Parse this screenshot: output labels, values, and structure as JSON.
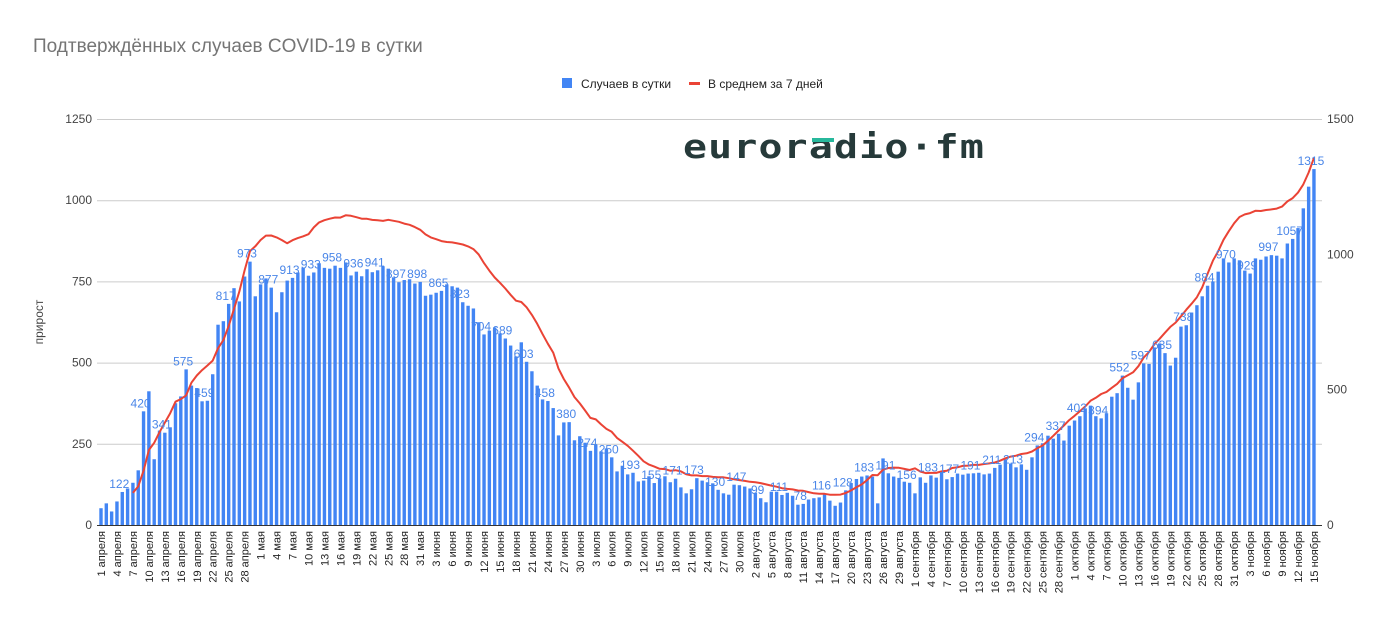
{
  "chart_data": {
    "type": "bar",
    "title": "Подтверждённых случаев COVID-19 в сутки",
    "ylabel": "прирост",
    "xlabel": "",
    "y_left": {
      "min": 0,
      "max": 1250,
      "ticks": [
        0,
        250,
        500,
        750,
        1000,
        1250
      ]
    },
    "y_right": {
      "min": 0,
      "max": 1500,
      "ticks": [
        0,
        500,
        1000,
        1500
      ]
    },
    "grid": true,
    "legend_position": "top",
    "colors": {
      "bars": "#4285f4",
      "line": "#ea4335",
      "grid": "#cccccc",
      "logo": "#263a3a",
      "logo_accent": "#27b89c"
    },
    "series": [
      {
        "name": "Случаев в сутки",
        "type": "bar",
        "axis": "right",
        "values": [
          62,
          80,
          50,
          87,
          122,
          135,
          156,
          202,
          420,
          494,
          243,
          349,
          341,
          361,
          450,
          475,
          575,
          515,
          506,
          457,
          459,
          557,
          740,
          753,
          817,
          875,
          826,
          918,
          973,
          845,
          889,
          911,
          877,
          786,
          860,
          903,
          913,
          933,
          951,
          921,
          933,
          967,
          950,
          947,
          958,
          950,
          970,
          922,
          936,
          919,
          945,
          934,
          941,
          956,
          947,
          915,
          897,
          905,
          908,
          892,
          898,
          847,
          851,
          858,
          865,
          889,
          882,
          877,
          823,
          810,
          800,
          749,
          704,
          718,
          730,
          708,
          689,
          663,
          623,
          675,
          603,
          568,
          515,
          464,
          458,
          432,
          331,
          379,
          380,
          313,
          328,
          304,
          274,
          297,
          272,
          283,
          250,
          198,
          219,
          187,
          193,
          161,
          164,
          180,
          155,
          172,
          180,
          158,
          171,
          139,
          117,
          132,
          173,
          164,
          158,
          154,
          130,
          117,
          112,
          149,
          147,
          142,
          135,
          119,
          99,
          84,
          123,
          123,
          111,
          119,
          108,
          75,
          78,
          94,
          99,
          102,
          116,
          90,
          71,
          83,
          128,
          155,
          170,
          179,
          183,
          179,
          80,
          246,
          191,
          179,
          174,
          160,
          156,
          117,
          176,
          156,
          183,
          175,
          193,
          169,
          177,
          190,
          186,
          190,
          191,
          193,
          187,
          190,
          211,
          223,
          243,
          227,
          213,
          224,
          204,
          250,
          294,
          302,
          330,
          319,
          337,
          312,
          367,
          386,
          402,
          431,
          441,
          402,
          394,
          413,
          474,
          487,
          552,
          507,
          463,
          527,
          597,
          595,
          656,
          671,
          635,
          589,
          618,
          733,
          738,
          785,
          812,
          845,
          884,
          900,
          936,
          985,
          970,
          985,
          978,
          940,
          929,
          985,
          980,
          992,
          997,
          995,
          985,
          1040,
          1057,
          1097,
          1170,
          1250,
          1315
        ]
      },
      {
        "name": "В среднем за 7 дней",
        "type": "line",
        "axis": "left",
        "window": 7
      }
    ],
    "data_label_every": 4,
    "tick_every": 3,
    "tick_labels": [
      "1 апреля",
      "4 апреля",
      "7 апреля",
      "10 апреля",
      "13 апреля",
      "16 апреля",
      "19 апреля",
      "22 апреля",
      "25 апреля",
      "28 апреля",
      "1 мая",
      "4 мая",
      "7 мая",
      "10 мая",
      "13 мая",
      "16 мая",
      "19 мая",
      "22 мая",
      "25 мая",
      "28 мая",
      "31 мая",
      "3 июня",
      "6 июня",
      "9 июня",
      "12 июня",
      "15 июня",
      "18 июня",
      "21 июня",
      "24 июня",
      "27 июня",
      "30 июня",
      "3 июля",
      "6 июля",
      "9 июля",
      "12 июля",
      "15 июля",
      "18 июля",
      "21 июля",
      "24 июля",
      "27 июля",
      "30 июля",
      "2 августа",
      "5 августа",
      "8 августа",
      "11 августа",
      "14 августа",
      "17 августа",
      "20 августа",
      "23 августа",
      "26 августа",
      "29 августа",
      "1 сентября",
      "4 сентября",
      "7 сентября",
      "10 сентября",
      "13 сентября",
      "16 сентября",
      "19 сентября",
      "22 сентября",
      "25 сентября",
      "28 сентября",
      "1 октября",
      "4 октября",
      "7 октября",
      "10 октября",
      "13 октября",
      "16 октября",
      "19 октября",
      "22 октября",
      "25 октября",
      "28 октября",
      "31 октября",
      "3 ноября",
      "6 ноября",
      "9 ноября",
      "12 ноября",
      "15 ноября"
    ]
  },
  "logo": {
    "text": "euroradio·fm"
  }
}
